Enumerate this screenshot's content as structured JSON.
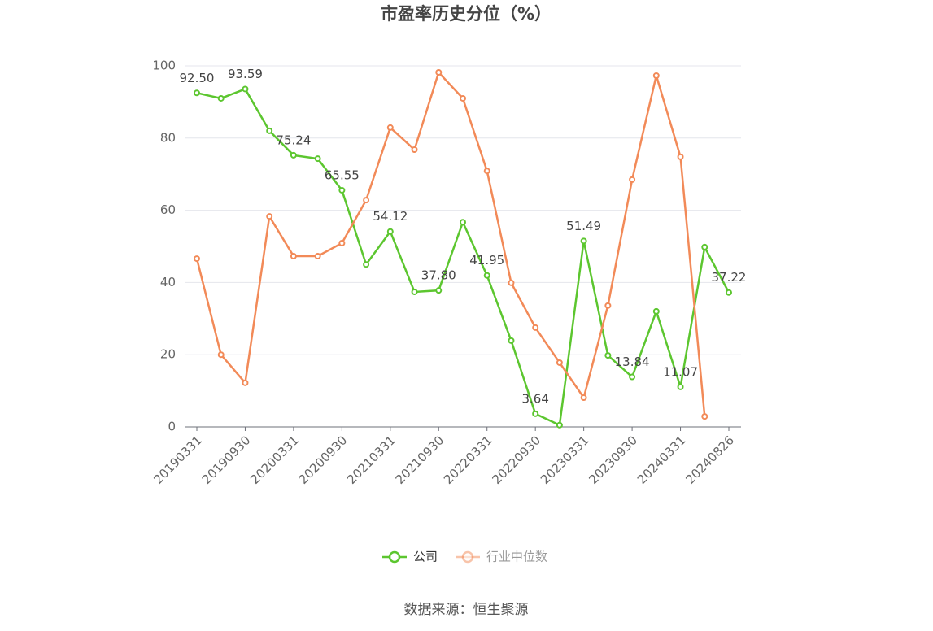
{
  "chart_data": {
    "type": "line",
    "title": "市盈率历史分位（%）",
    "categories": [
      "20190331",
      null,
      "20190930",
      null,
      "20200331",
      null,
      "20200930",
      null,
      "20210331",
      null,
      "20210930",
      null,
      "20220331",
      null,
      "20220930",
      null,
      "20230331",
      null,
      "20230930",
      null,
      "20240331",
      null,
      "20240826"
    ],
    "series": [
      {
        "name": "公司",
        "color": "#5cc62f",
        "values": [
          92.5,
          91.0,
          93.59,
          82.0,
          75.24,
          74.3,
          65.55,
          45.0,
          54.12,
          37.4,
          37.8,
          56.7,
          41.95,
          23.9,
          3.64,
          0.5,
          51.49,
          19.8,
          13.84,
          32.0,
          11.07,
          49.8,
          37.22
        ],
        "value_labels": [
          "92.50",
          null,
          "93.59",
          null,
          "75.24",
          null,
          "65.55",
          null,
          "54.12",
          null,
          "37.80",
          null,
          "41.95",
          null,
          "3.64",
          null,
          "51.49",
          null,
          "13.84",
          null,
          "11.07",
          null,
          "37.22"
        ]
      },
      {
        "name": "行业中位数",
        "color": "#f28a58",
        "values": [
          46.6,
          20.0,
          12.2,
          58.3,
          47.3,
          47.3,
          50.9,
          62.8,
          82.9,
          76.8,
          98.2,
          91.0,
          70.9,
          39.9,
          27.5,
          17.8,
          8.1,
          33.6,
          68.5,
          97.3,
          74.8,
          2.9,
          null
        ]
      }
    ],
    "ylim": [
      0,
      100
    ],
    "yticks": [
      0,
      20,
      40,
      60,
      80,
      100
    ],
    "grid": true,
    "legend": "bottom"
  },
  "source": "数据来源：恒生聚源"
}
